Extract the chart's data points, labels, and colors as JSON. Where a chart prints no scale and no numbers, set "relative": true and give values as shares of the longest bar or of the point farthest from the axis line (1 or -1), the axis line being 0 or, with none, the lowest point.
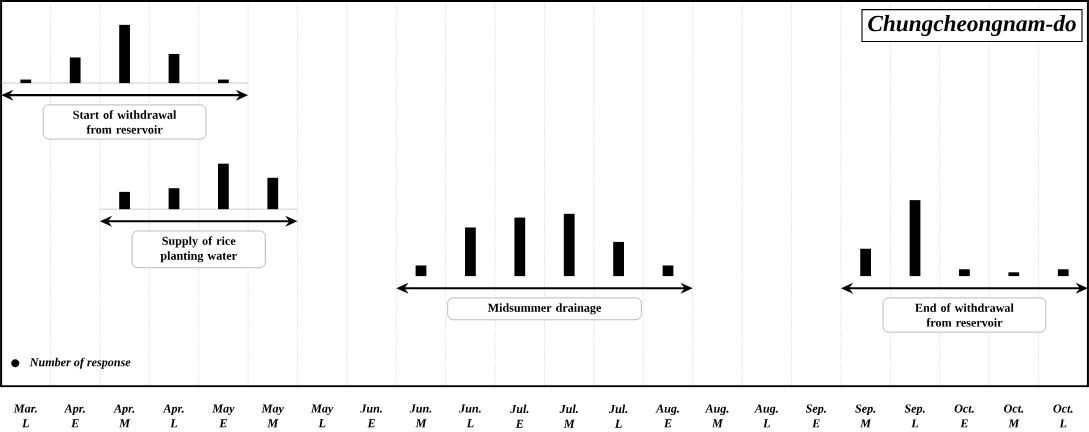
{
  "chart_data": [
    {
      "type": "bar",
      "relative": true,
      "tick_labels": false,
      "categories": [
        null,
        null,
        null,
        null,
        null
      ],
      "series": [
        {
          "name": "Start of withdrawal from reservoir",
          "color": "#000000",
          "values": [
            0.06,
            0.44,
            1,
            0.5,
            0.06
          ]
        }
      ]
    },
    {
      "type": "bar",
      "relative": true,
      "tick_labels": false,
      "categories": [
        null,
        null,
        null,
        null
      ],
      "series": [
        {
          "name": "Supply of rice planting water",
          "color": "#000000",
          "values": [
            0.38,
            0.46,
            1,
            0.69
          ]
        }
      ]
    },
    {
      "type": "bar",
      "relative": true,
      "title": "Chungcheongnam-do",
      "grid": "x",
      "tick_labels": "x",
      "annotations": [
        "Number of response"
      ],
      "categories": [
        "Mar. L",
        "Apr. E",
        "Apr. M",
        "Apr. L",
        "May E",
        "May M",
        "May L",
        "Jun. E",
        "Jun. M",
        "Jun. L",
        "Jul. E",
        "Jul. M",
        "Jul. L",
        "Aug. E",
        "Aug. M",
        "Aug. L",
        "Sep. E",
        "Sep. M",
        "Sep. L",
        "Oct. E",
        "Oct. M",
        "Oct. L"
      ],
      "series": [
        {
          "name": "Midsummer drainage",
          "color": "#000000",
          "values": [
            null,
            null,
            null,
            null,
            null,
            null,
            null,
            null,
            0.14,
            0.64,
            0.77,
            0.82,
            0.45,
            0.14,
            null,
            null,
            null,
            null,
            null,
            null,
            null,
            null
          ]
        },
        {
          "name": "End of withdrawal from reservoir",
          "color": "#000000",
          "values": [
            null,
            null,
            null,
            null,
            null,
            null,
            null,
            null,
            null,
            null,
            null,
            null,
            null,
            null,
            null,
            null,
            null,
            0.36,
            1,
            0.09,
            0.05,
            0.09
          ]
        }
      ]
    }
  ]
}
